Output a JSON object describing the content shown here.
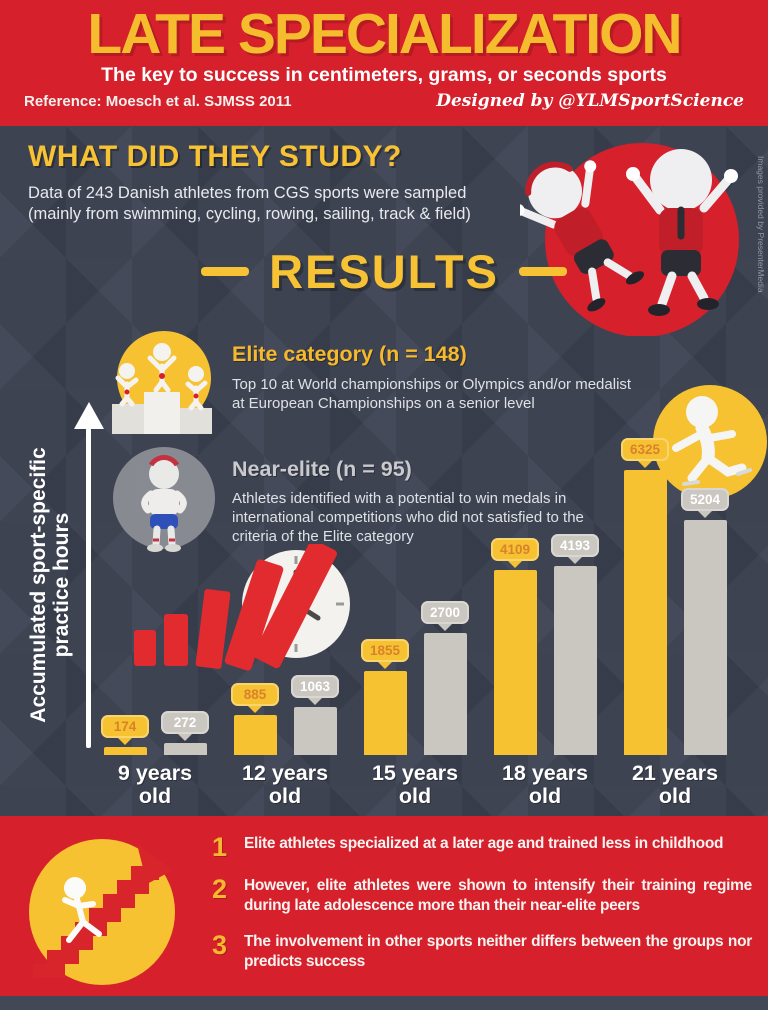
{
  "header": {
    "title": "LATE SPECIALIZATION",
    "subtitle": "The key to success in centimeters, grams, or seconds sports",
    "reference": "Reference: Moesch et al. SJMSS 2011",
    "designed_by": "Designed by @YLMSportScience"
  },
  "study": {
    "heading": "WHAT DID THEY STUDY?",
    "body_line1": "Data of 243 Danish athletes from CGS sports were sampled",
    "body_line2": "(mainly from swimming, cycling, rowing, sailing, track & field)"
  },
  "credit": "Images provided by PresenterMedia",
  "results": {
    "heading": "RESULTS",
    "elite": {
      "heading": "Elite category (n = 148)",
      "description": "Top 10 at World championships or Olympics and/or medalist at European Championships on a senior level"
    },
    "near_elite": {
      "heading": "Near-elite (n = 95)",
      "description": "Athletes identified with a potential to win medals in international competitions who did not satisfied to the criteria of the Elite category"
    }
  },
  "chart_data": {
    "type": "bar",
    "title": "Accumulated sport-specific practice hours by age (Elite vs Near-elite)",
    "ylabel": "Accumulated sport-specific practice hours",
    "xlabel": "",
    "categories": [
      "9 years old",
      "12 years old",
      "15 years old",
      "18 years old",
      "21 years old"
    ],
    "series": [
      {
        "name": "Elite",
        "color": "#f6c232",
        "values": [
          174,
          885,
          1855,
          4109,
          6325
        ]
      },
      {
        "name": "Near-elite",
        "color": "#cac6c0",
        "values": [
          272,
          1063,
          2700,
          4193,
          5204
        ]
      }
    ],
    "ylim": [
      0,
      6500
    ],
    "grid": false,
    "legend_position": "none"
  },
  "conclusions": [
    {
      "num": "1",
      "text": "Elite athletes specialized at a later age and trained less in childhood"
    },
    {
      "num": "2",
      "text": "However, elite athletes were shown to intensify their training regime during late adolescence more than their near-elite peers"
    },
    {
      "num": "3",
      "text": "The involvement in other sports neither differs between the groups nor predicts success"
    }
  ],
  "icons": {
    "podium": "podium-winners-illustration",
    "near_elite_athlete": "athlete-figure-illustration",
    "jumping_athletes": "jumping-athletes-illustration",
    "rising_bars_clock": "rising-bars-clock-illustration",
    "skater": "skating-figure-illustration",
    "stairs_runner": "runner-on-stairs-illustration",
    "up_arrow": "y-axis-up-arrow"
  },
  "colors": {
    "red": "#d6202b",
    "yellow": "#f6c232",
    "dark_background": "#3e4352",
    "near_elite_gray": "#cac6c0"
  }
}
